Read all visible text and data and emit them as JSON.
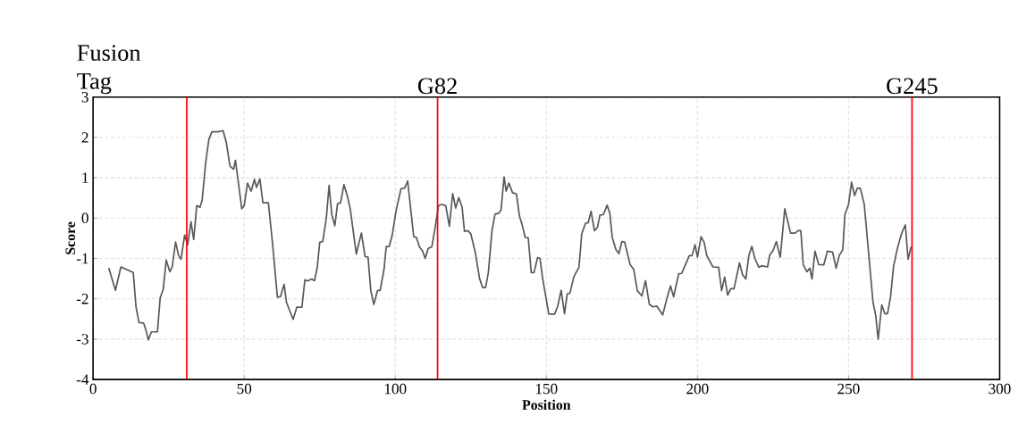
{
  "chart_data": {
    "type": "line",
    "xlabel": "Position",
    "ylabel": "Score",
    "xlim": [
      0,
      300
    ],
    "xticks": [
      0,
      50,
      100,
      150,
      200,
      250,
      300
    ],
    "ylim": [
      -4,
      3
    ],
    "yticks": [
      -4,
      -3,
      -2,
      -1,
      0,
      1,
      2,
      3
    ],
    "grid": true,
    "marker": "none",
    "line_style": "solid",
    "series": [
      {
        "color": "#595959",
        "x": [
          5.2,
          7.4,
          9.2,
          13.3,
          14.2,
          15.2,
          16.7,
          17.4,
          18.3,
          19.3,
          21.3,
          22.2,
          23.2,
          24.2,
          25.4,
          26.2,
          27.3,
          28.3,
          29.1,
          30.3,
          31.3,
          32.4,
          33.3,
          34.3,
          35.4,
          36.1,
          37.3,
          38.3,
          39.3,
          41.4,
          43.0,
          44.1,
          45.3,
          46.5,
          47.1,
          48.2,
          49.2,
          50.0,
          51.1,
          52.3,
          53.4,
          54.1,
          55.2,
          56.2,
          58.0,
          59.4,
          61.0,
          62.0,
          63.2,
          64.0,
          66.2,
          67.4,
          69.1,
          70.1,
          71.0,
          72.3,
          73.3,
          74.2,
          75.0,
          76.0,
          77.2,
          78.1,
          79.0,
          80.0,
          80.9,
          81.9,
          83.0,
          84.1,
          85.1,
          87.1,
          88.8,
          90.0,
          91.0,
          91.9,
          92.9,
          94.1,
          95.0,
          96.3,
          97.0,
          98.0,
          99.0,
          100.2,
          101.9,
          103.1,
          104.1,
          106.1,
          107.0,
          108.0,
          109.0,
          109.9,
          110.9,
          112.1,
          113.1,
          114.3,
          115.3,
          116.7,
          117.9,
          119.0,
          120.0,
          121.0,
          122.1,
          122.9,
          124.0,
          125.0,
          126.5,
          127.9,
          128.9,
          129.9,
          130.8,
          132.0,
          133.0,
          134.2,
          135.0,
          136.0,
          136.7,
          137.6,
          138.8,
          140.1,
          141.1,
          142.0,
          143.0,
          144.0,
          145.0,
          145.9,
          147.1,
          147.9,
          148.8,
          150.8,
          152.7,
          153.7,
          154.9,
          156.0,
          156.9,
          157.8,
          159.1,
          160.8,
          161.7,
          163.0,
          163.8,
          164.8,
          165.9,
          166.9,
          167.7,
          168.9,
          170.1,
          171.0,
          171.8,
          173.0,
          174.0,
          175.0,
          175.9,
          177.7,
          178.9,
          180.1,
          181.6,
          182.8,
          184.1,
          185.3,
          186.5,
          188.5,
          190.0,
          191.1,
          192.1,
          193.8,
          194.8,
          197.3,
          198.2,
          199.2,
          200.0,
          201.2,
          202.2,
          203.1,
          205.1,
          207.0,
          208.0,
          209.0,
          210.0,
          211.0,
          212.1,
          213.9,
          214.9,
          216.0,
          217.0,
          218.0,
          219.0,
          220.3,
          221.2,
          223.2,
          223.9,
          225.1,
          226.1,
          227.4,
          228.9,
          230.8,
          232.3,
          233.3,
          234.2,
          235.0,
          236.2,
          237.2,
          237.9,
          238.9,
          240.1,
          241.8,
          243.0,
          244.7,
          245.9,
          246.9,
          248.1,
          248.8,
          250.0,
          251.0,
          252.0,
          252.9,
          253.9,
          255.2,
          258.1,
          259.0,
          259.8,
          261.0,
          262.0,
          262.9,
          263.9,
          264.9,
          266.1,
          267.3,
          268.1,
          268.8,
          269.7,
          270.7
        ],
        "values": [
          -1.24,
          -1.79,
          -1.21,
          -1.35,
          -2.2,
          -2.59,
          -2.6,
          -2.75,
          -3.02,
          -2.82,
          -2.82,
          -1.98,
          -1.77,
          -1.04,
          -1.33,
          -1.2,
          -0.59,
          -0.93,
          -1.02,
          -0.42,
          -0.66,
          -0.09,
          -0.53,
          0.31,
          0.27,
          0.45,
          1.4,
          1.94,
          2.14,
          2.14,
          2.17,
          1.87,
          1.29,
          1.21,
          1.43,
          0.81,
          0.23,
          0.31,
          0.87,
          0.67,
          0.96,
          0.76,
          0.97,
          0.38,
          0.38,
          -0.64,
          -1.96,
          -1.95,
          -1.64,
          -2.09,
          -2.51,
          -2.21,
          -2.21,
          -1.53,
          -1.56,
          -1.51,
          -1.55,
          -1.21,
          -0.6,
          -0.58,
          0.01,
          0.81,
          0.09,
          -0.19,
          0.36,
          0.38,
          0.83,
          0.56,
          0.23,
          -0.89,
          -0.37,
          -0.95,
          -0.97,
          -1.8,
          -2.14,
          -1.8,
          -1.79,
          -1.26,
          -0.71,
          -0.7,
          -0.42,
          0.16,
          0.73,
          0.74,
          0.92,
          -0.46,
          -0.48,
          -0.71,
          -0.81,
          -1.0,
          -0.75,
          -0.71,
          -0.28,
          0.31,
          0.34,
          0.31,
          -0.2,
          0.61,
          0.25,
          0.51,
          0.28,
          -0.33,
          -0.31,
          -0.39,
          -0.86,
          -1.5,
          -1.72,
          -1.72,
          -1.35,
          -0.31,
          0.1,
          0.12,
          0.2,
          1.02,
          0.67,
          0.87,
          0.63,
          0.6,
          0.05,
          -0.17,
          -0.48,
          -0.49,
          -1.35,
          -1.35,
          -0.98,
          -1.0,
          -1.51,
          -2.38,
          -2.38,
          -2.2,
          -1.79,
          -2.37,
          -1.88,
          -1.86,
          -1.45,
          -1.22,
          -0.39,
          -0.12,
          -0.12,
          0.17,
          -0.31,
          -0.23,
          0.07,
          0.09,
          0.32,
          0.12,
          -0.48,
          -0.78,
          -0.88,
          -0.58,
          -0.59,
          -1.15,
          -1.27,
          -1.8,
          -1.93,
          -1.55,
          -2.14,
          -2.2,
          -2.18,
          -2.4,
          -1.96,
          -1.68,
          -1.95,
          -1.38,
          -1.37,
          -0.93,
          -0.93,
          -0.66,
          -0.97,
          -0.46,
          -0.6,
          -0.93,
          -1.21,
          -1.22,
          -1.8,
          -1.46,
          -1.91,
          -1.75,
          -1.75,
          -1.11,
          -1.4,
          -1.51,
          -0.93,
          -0.7,
          -1.0,
          -1.22,
          -1.18,
          -1.21,
          -0.92,
          -0.79,
          -0.58,
          -0.97,
          0.23,
          -0.37,
          -0.37,
          -0.31,
          -0.31,
          -1.15,
          -1.33,
          -1.24,
          -1.51,
          -0.82,
          -1.15,
          -1.16,
          -0.82,
          -0.84,
          -1.24,
          -0.93,
          -0.78,
          0.09,
          0.34,
          0.89,
          0.56,
          0.74,
          0.74,
          0.34,
          -2.09,
          -2.42,
          -3.0,
          -2.15,
          -2.37,
          -2.37,
          -1.95,
          -1.19,
          -0.77,
          -0.44,
          -0.28,
          -0.17,
          -1.02,
          -0.71
        ]
      }
    ],
    "ref_lines": [
      {
        "axis": "x",
        "value": 31,
        "label": "Fusion Tag",
        "color": "#ff0000"
      },
      {
        "axis": "x",
        "value": 114,
        "label": "G82",
        "color": "#ff0000"
      },
      {
        "axis": "x",
        "value": 271,
        "label": "G245",
        "color": "#ff0000"
      }
    ]
  }
}
